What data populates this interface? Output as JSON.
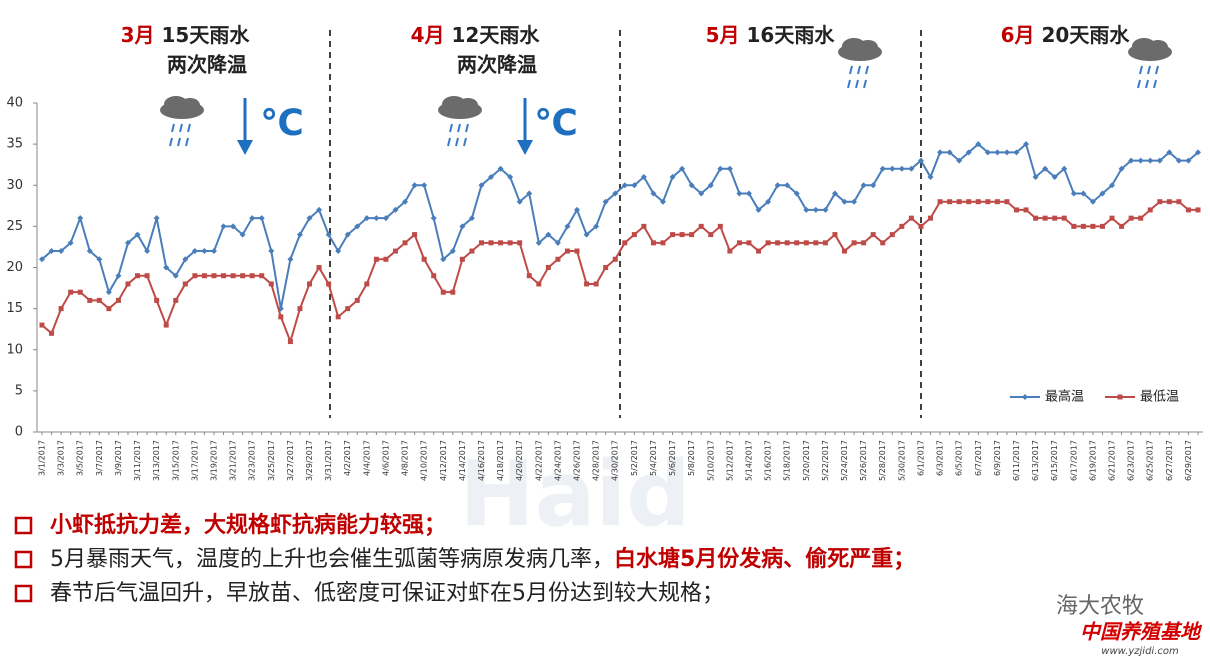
{
  "chart_data": {
    "type": "line",
    "periods": [
      {
        "month": "3月",
        "rain": "15天雨水",
        "drop": "两次降温"
      },
      {
        "month": "4月",
        "rain": "12天雨水",
        "drop": "两次降温"
      },
      {
        "month": "5月",
        "rain": "16天雨水"
      },
      {
        "month": "6月",
        "rain": "20天雨水"
      }
    ],
    "cold_label": "℃",
    "categories": [
      "3/1/2017",
      null,
      "3/3/2017",
      null,
      "3/5/2017",
      null,
      "3/7/2017",
      null,
      "3/9/2017",
      null,
      "3/11/2017",
      null,
      "3/13/2017",
      null,
      "3/15/2017",
      null,
      "3/17/2017",
      null,
      "3/19/2017",
      null,
      "3/21/2017",
      null,
      "3/23/2017",
      null,
      "3/25/2017",
      null,
      "3/27/2017",
      null,
      "3/29/2017",
      null,
      "3/31/2017",
      null,
      "4/2/2017",
      null,
      "4/4/2017",
      null,
      "4/6/2017",
      null,
      "4/8/2017",
      null,
      "4/10/2017",
      null,
      "4/12/2017",
      null,
      "4/14/2017",
      null,
      "4/16/2017",
      null,
      "4/18/2017",
      null,
      "4/20/2017",
      null,
      "4/22/2017",
      null,
      "4/24/2017",
      null,
      "4/26/2017",
      null,
      "4/28/2017",
      null,
      "4/30/2017",
      null,
      "5/2/2017",
      null,
      "5/4/2017",
      null,
      "5/6/2017",
      null,
      "5/8/2017",
      null,
      "5/10/2017",
      null,
      "5/12/2017",
      null,
      "5/14/2017",
      null,
      "5/16/2017",
      null,
      "5/18/2017",
      null,
      "5/20/2017",
      null,
      "5/22/2017",
      null,
      "5/24/2017",
      null,
      "5/26/2017",
      null,
      "5/28/2017",
      null,
      "5/30/2017",
      null,
      "6/1/2017",
      null,
      "6/3/2017",
      null,
      "6/5/2017",
      null,
      "6/7/2017",
      null,
      "6/9/2017",
      null,
      "6/11/2017",
      null,
      "6/13/2017",
      null,
      "6/15/2017",
      null,
      "6/17/2017",
      null,
      "6/19/2017",
      null,
      "6/21/2017",
      null,
      "6/23/2017",
      null,
      "6/25/2017",
      null,
      "6/27/2017",
      null,
      "6/29/2017",
      null
    ],
    "series": [
      {
        "name": "最高温",
        "color": "#4a7ebb",
        "marker": "diamond",
        "values": [
          21,
          22,
          22,
          23,
          26,
          22,
          21,
          17,
          19,
          23,
          24,
          22,
          26,
          20,
          19,
          21,
          22,
          22,
          22,
          25,
          25,
          24,
          26,
          26,
          22,
          15,
          21,
          24,
          26,
          27,
          24,
          22,
          24,
          25,
          26,
          26,
          26,
          27,
          28,
          30,
          30,
          26,
          21,
          22,
          25,
          26,
          30,
          31,
          32,
          31,
          28,
          29,
          23,
          24,
          23,
          25,
          27,
          24,
          25,
          28,
          29,
          30,
          30,
          31,
          29,
          28,
          31,
          32,
          30,
          29,
          30,
          32,
          32,
          29,
          29,
          27,
          28,
          30,
          30,
          29,
          27,
          27,
          27,
          29,
          28,
          28,
          30,
          30,
          32,
          32,
          32,
          32,
          33,
          31,
          34,
          34,
          33,
          34,
          35,
          34,
          34,
          34,
          34,
          35,
          31,
          32,
          31,
          32,
          29,
          29,
          28,
          29,
          30,
          32,
          33,
          33,
          33,
          33,
          34,
          33,
          33,
          34
        ]
      },
      {
        "name": "最低温",
        "color": "#be4b48",
        "marker": "square",
        "values": [
          13,
          12,
          15,
          17,
          17,
          16,
          16,
          15,
          16,
          18,
          19,
          19,
          16,
          13,
          16,
          18,
          19,
          19,
          19,
          19,
          19,
          19,
          19,
          19,
          18,
          14,
          11,
          15,
          18,
          20,
          18,
          14,
          15,
          16,
          18,
          21,
          21,
          22,
          23,
          24,
          21,
          19,
          17,
          17,
          21,
          22,
          23,
          23,
          23,
          23,
          23,
          19,
          18,
          20,
          21,
          22,
          22,
          18,
          18,
          20,
          21,
          23,
          24,
          25,
          23,
          23,
          24,
          24,
          24,
          25,
          24,
          25,
          22,
          23,
          23,
          22,
          23,
          23,
          23,
          23,
          23,
          23,
          23,
          24,
          22,
          23,
          23,
          24,
          23,
          24,
          25,
          26,
          25,
          26,
          28,
          28,
          28,
          28,
          28,
          28,
          28,
          28,
          27,
          27,
          26,
          26,
          26,
          26,
          25,
          25,
          25,
          25,
          26,
          25,
          26,
          26,
          27,
          28,
          28,
          28,
          27,
          27
        ]
      }
    ],
    "ylim": [
      0,
      40
    ],
    "yticks": [
      0,
      5,
      10,
      15,
      20,
      25,
      30,
      35,
      40
    ],
    "legend": "lower right"
  },
  "notes": [
    [
      {
        "text": "小虾抵抗力差，大规格虾抗病能力较强；",
        "color": "#c00000"
      }
    ],
    [
      {
        "text": "5月暴雨天气，温度的上升也会催生弧菌等病原发病几率，",
        "color": "#222222"
      },
      {
        "text": "白水塘5月份发病、偷死严重；",
        "color": "#c00000"
      }
    ],
    [
      {
        "text": "春节后气温回升，早放苗、低密度可保证对虾在5月份达到较大规格；",
        "color": "#222222"
      }
    ]
  ],
  "watermark": {
    "logo": "Haid",
    "brand": "海大农牧",
    "site": "中国养殖基地",
    "url": "www.yzjidi.com"
  }
}
